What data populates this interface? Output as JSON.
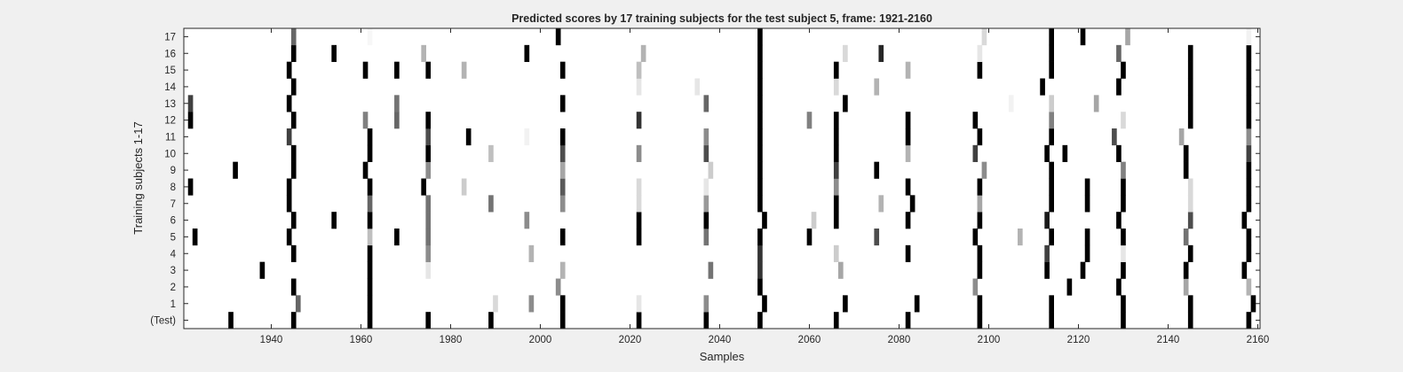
{
  "chart_data": {
    "type": "heatmap",
    "title": "Predicted scores by 17 training subjects for the test subject 5, frame: 1921-2160",
    "xlabel": "Samples",
    "ylabel": "Training subjects 1-17",
    "xlim": [
      1921,
      2160
    ],
    "x_ticks": [
      1940,
      1960,
      1980,
      2000,
      2020,
      2040,
      2060,
      2080,
      2100,
      2120,
      2140,
      2160
    ],
    "y_tick_labels": [
      "(Test)",
      "1",
      "2",
      "3",
      "4",
      "5",
      "6",
      "7",
      "8",
      "9",
      "10",
      "11",
      "12",
      "13",
      "14",
      "15",
      "16",
      "17"
    ],
    "colormap": "gray",
    "background": "#ffffff",
    "rows": [
      {
        "label": "(Test)",
        "marks": [
          [
            1931,
            1
          ],
          [
            1945,
            1
          ],
          [
            1962,
            1
          ],
          [
            1975,
            1
          ],
          [
            1989,
            1
          ],
          [
            2005,
            1
          ],
          [
            2022,
            1
          ],
          [
            2037,
            1
          ],
          [
            2049,
            1
          ],
          [
            2066,
            1
          ],
          [
            2082,
            1
          ],
          [
            2098,
            1
          ],
          [
            2114,
            1
          ],
          [
            2130,
            1
          ],
          [
            2145,
            1
          ],
          [
            2158,
            1
          ]
        ]
      },
      {
        "label": "1",
        "marks": [
          [
            1946,
            0.6
          ],
          [
            1962,
            1
          ],
          [
            1990,
            0.15
          ],
          [
            1998,
            0.45
          ],
          [
            2005,
            1
          ],
          [
            2022,
            0.1
          ],
          [
            2037,
            0.45
          ],
          [
            2050,
            1
          ],
          [
            2068,
            1
          ],
          [
            2084,
            1
          ],
          [
            2098,
            1
          ],
          [
            2114,
            1
          ],
          [
            2130,
            1
          ],
          [
            2145,
            1
          ],
          [
            2159,
            1
          ]
        ]
      },
      {
        "label": "2",
        "marks": [
          [
            1945,
            1
          ],
          [
            1962,
            1
          ],
          [
            2004,
            0.45
          ],
          [
            2049,
            1
          ],
          [
            2097,
            0.45
          ],
          [
            2118,
            1
          ],
          [
            2129,
            1
          ],
          [
            2144,
            0.35
          ],
          [
            2158,
            0.3
          ]
        ]
      },
      {
        "label": "3",
        "marks": [
          [
            1938,
            1
          ],
          [
            1962,
            1
          ],
          [
            1975,
            0.1
          ],
          [
            2005,
            0.3
          ],
          [
            2038,
            0.55
          ],
          [
            2049,
            0.8
          ],
          [
            2067,
            0.35
          ],
          [
            2098,
            1
          ],
          [
            2113,
            1
          ],
          [
            2121,
            1
          ],
          [
            2130,
            1
          ],
          [
            2144,
            1
          ],
          [
            2157,
            1
          ]
        ]
      },
      {
        "label": "4",
        "marks": [
          [
            1945,
            1
          ],
          [
            1962,
            1
          ],
          [
            1975,
            0.45
          ],
          [
            1998,
            0.3
          ],
          [
            2049,
            0.8
          ],
          [
            2066,
            0.2
          ],
          [
            2082,
            1
          ],
          [
            2098,
            1
          ],
          [
            2113,
            0.75
          ],
          [
            2122,
            1
          ],
          [
            2130,
            0.1
          ],
          [
            2145,
            1
          ],
          [
            2158,
            1
          ]
        ]
      },
      {
        "label": "5",
        "marks": [
          [
            1923,
            1
          ],
          [
            1944,
            1
          ],
          [
            1962,
            0.25
          ],
          [
            1968,
            1
          ],
          [
            1975,
            0.55
          ],
          [
            2005,
            1
          ],
          [
            2022,
            1
          ],
          [
            2037,
            0.55
          ],
          [
            2049,
            1
          ],
          [
            2060,
            1
          ],
          [
            2075,
            0.7
          ],
          [
            2097,
            1
          ],
          [
            2107,
            0.3
          ],
          [
            2114,
            1
          ],
          [
            2122,
            1
          ],
          [
            2130,
            1
          ],
          [
            2144,
            0.55
          ],
          [
            2158,
            1
          ]
        ]
      },
      {
        "label": "6",
        "marks": [
          [
            1945,
            1
          ],
          [
            1954,
            1
          ],
          [
            1962,
            1
          ],
          [
            1975,
            0.55
          ],
          [
            1997,
            0.45
          ],
          [
            2022,
            1
          ],
          [
            2037,
            1
          ],
          [
            2050,
            1
          ],
          [
            2061,
            0.2
          ],
          [
            2066,
            1
          ],
          [
            2082,
            1
          ],
          [
            2098,
            1
          ],
          [
            2113,
            0.9
          ],
          [
            2129,
            1
          ],
          [
            2145,
            0.7
          ],
          [
            2157,
            1
          ]
        ]
      },
      {
        "label": "7",
        "marks": [
          [
            1944,
            1
          ],
          [
            1962,
            0.6
          ],
          [
            1975,
            0.55
          ],
          [
            1989,
            0.55
          ],
          [
            2005,
            0.45
          ],
          [
            2022,
            0.15
          ],
          [
            2037,
            0.4
          ],
          [
            2049,
            1
          ],
          [
            2066,
            1
          ],
          [
            2076,
            0.3
          ],
          [
            2083,
            1
          ],
          [
            2098,
            0.35
          ],
          [
            2114,
            1
          ],
          [
            2122,
            1
          ],
          [
            2130,
            1
          ],
          [
            2145,
            0.15
          ],
          [
            2158,
            1
          ]
        ]
      },
      {
        "label": "8",
        "marks": [
          [
            1922,
            1
          ],
          [
            1944,
            1
          ],
          [
            1962,
            1
          ],
          [
            1974,
            1
          ],
          [
            1983,
            0.2
          ],
          [
            2005,
            0.65
          ],
          [
            2022,
            0.15
          ],
          [
            2037,
            0.1
          ],
          [
            2049,
            1
          ],
          [
            2066,
            0.45
          ],
          [
            2082,
            1
          ],
          [
            2098,
            1
          ],
          [
            2114,
            1
          ],
          [
            2122,
            1
          ],
          [
            2130,
            1
          ],
          [
            2145,
            0.15
          ],
          [
            2158,
            1
          ]
        ]
      },
      {
        "label": "9",
        "marks": [
          [
            1932,
            1
          ],
          [
            1945,
            1
          ],
          [
            1961,
            1
          ],
          [
            1975,
            0.45
          ],
          [
            2005,
            0.35
          ],
          [
            2038,
            0.2
          ],
          [
            2049,
            1
          ],
          [
            2066,
            0.75
          ],
          [
            2075,
            1
          ],
          [
            2099,
            0.45
          ],
          [
            2114,
            1
          ],
          [
            2130,
            0.5
          ],
          [
            2144,
            1
          ],
          [
            2158,
            1
          ]
        ]
      },
      {
        "label": "10",
        "marks": [
          [
            1945,
            1
          ],
          [
            1962,
            1
          ],
          [
            1975,
            1
          ],
          [
            1989,
            0.25
          ],
          [
            2005,
            0.7
          ],
          [
            2022,
            0.45
          ],
          [
            2037,
            0.7
          ],
          [
            2049,
            1
          ],
          [
            2066,
            1
          ],
          [
            2082,
            0.3
          ],
          [
            2097,
            0.75
          ],
          [
            2113,
            1
          ],
          [
            2117,
            1
          ],
          [
            2129,
            1
          ],
          [
            2144,
            1
          ],
          [
            2158,
            0.75
          ]
        ]
      },
      {
        "label": "11",
        "marks": [
          [
            1944,
            0.75
          ],
          [
            1962,
            1
          ],
          [
            1975,
            0.7
          ],
          [
            1984,
            1
          ],
          [
            1997,
            0.05
          ],
          [
            2005,
            1
          ],
          [
            2037,
            0.45
          ],
          [
            2049,
            1
          ],
          [
            2066,
            1
          ],
          [
            2082,
            1
          ],
          [
            2098,
            1
          ],
          [
            2114,
            1
          ],
          [
            2128,
            0.7
          ],
          [
            2143,
            0.35
          ],
          [
            2158,
            0.45
          ]
        ]
      },
      {
        "label": "12",
        "marks": [
          [
            1922,
            1
          ],
          [
            1945,
            1
          ],
          [
            1961,
            0.5
          ],
          [
            1968,
            0.6
          ],
          [
            1975,
            1
          ],
          [
            2022,
            0.8
          ],
          [
            2049,
            1
          ],
          [
            2060,
            0.5
          ],
          [
            2066,
            1
          ],
          [
            2082,
            1
          ],
          [
            2097,
            1
          ],
          [
            2114,
            0.5
          ],
          [
            2130,
            0.15
          ],
          [
            2145,
            1
          ],
          [
            2158,
            1
          ]
        ]
      },
      {
        "label": "13",
        "marks": [
          [
            1922,
            0.75
          ],
          [
            1944,
            1
          ],
          [
            1968,
            0.55
          ],
          [
            2005,
            1
          ],
          [
            2037,
            0.6
          ],
          [
            2049,
            1
          ],
          [
            2068,
            1
          ],
          [
            2105,
            0.05
          ],
          [
            2114,
            0.2
          ],
          [
            2124,
            0.35
          ],
          [
            2145,
            1
          ],
          [
            2158,
            1
          ]
        ]
      },
      {
        "label": "14",
        "marks": [
          [
            1945,
            1
          ],
          [
            2022,
            0.1
          ],
          [
            2035,
            0.1
          ],
          [
            2049,
            1
          ],
          [
            2066,
            0.15
          ],
          [
            2075,
            0.3
          ],
          [
            2112,
            1
          ],
          [
            2129,
            1
          ],
          [
            2145,
            1
          ],
          [
            2158,
            1
          ]
        ]
      },
      {
        "label": "15",
        "marks": [
          [
            1944,
            1
          ],
          [
            1961,
            1
          ],
          [
            1968,
            1
          ],
          [
            1975,
            1
          ],
          [
            1983,
            0.3
          ],
          [
            2005,
            1
          ],
          [
            2022,
            0.25
          ],
          [
            2049,
            1
          ],
          [
            2066,
            1
          ],
          [
            2082,
            0.3
          ],
          [
            2098,
            1
          ],
          [
            2114,
            1
          ],
          [
            2130,
            1
          ],
          [
            2145,
            1
          ],
          [
            2158,
            1
          ]
        ]
      },
      {
        "label": "16",
        "marks": [
          [
            1945,
            1
          ],
          [
            1954,
            1
          ],
          [
            1974,
            0.3
          ],
          [
            1997,
            1
          ],
          [
            2023,
            0.3
          ],
          [
            2049,
            1
          ],
          [
            2068,
            0.15
          ],
          [
            2076,
            0.85
          ],
          [
            2098,
            0.1
          ],
          [
            2114,
            1
          ],
          [
            2129,
            0.6
          ],
          [
            2145,
            1
          ],
          [
            2158,
            1
          ]
        ]
      },
      {
        "label": "17",
        "marks": [
          [
            1945,
            0.6
          ],
          [
            1962,
            0.03
          ],
          [
            2004,
            1
          ],
          [
            2049,
            1
          ],
          [
            2099,
            0.15
          ],
          [
            2114,
            1
          ],
          [
            2121,
            1
          ],
          [
            2131,
            0.35
          ],
          [
            2158,
            0.05
          ]
        ]
      }
    ]
  }
}
